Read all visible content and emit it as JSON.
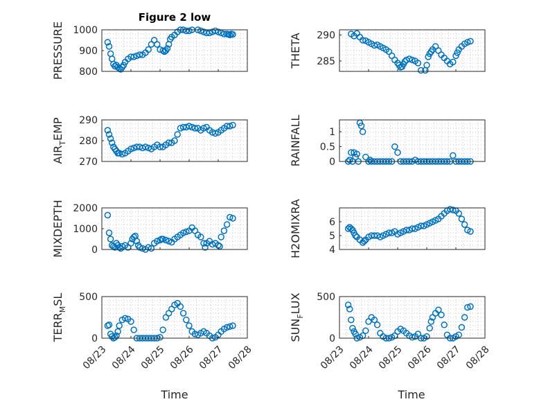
{
  "figure": {
    "title": "Figure 2 low",
    "color": "#0072bd",
    "grid": true,
    "marker": "circle-open",
    "x_tick_labels": [
      "08/23",
      "08/24",
      "08/25",
      "08/26",
      "08/27",
      "08/28"
    ],
    "x_axis_label": "Time"
  },
  "chart_data": [
    {
      "type": "scatter",
      "ylabel": "PRESSURE",
      "ylim": [
        800,
        1000
      ],
      "yticks": [
        800,
        900,
        1000
      ],
      "xlim": [
        0,
        5
      ],
      "x": [
        0.2,
        0.25,
        0.3,
        0.35,
        0.4,
        0.45,
        0.5,
        0.55,
        0.6,
        0.65,
        0.7,
        0.75,
        0.8,
        0.9,
        1.0,
        1.1,
        1.2,
        1.3,
        1.4,
        1.5,
        1.6,
        1.7,
        1.8,
        1.9,
        2.0,
        2.1,
        2.15,
        2.2,
        2.25,
        2.3,
        2.35,
        2.4,
        2.5,
        2.6,
        2.7,
        2.8,
        2.9,
        3.0,
        3.1,
        3.2,
        3.3,
        3.4,
        3.5,
        3.6,
        3.7,
        3.8,
        3.9,
        4.0,
        4.1,
        4.2,
        4.3,
        4.35,
        4.4,
        4.45,
        4.5
      ],
      "y": [
        940,
        920,
        885,
        860,
        835,
        825,
        830,
        820,
        815,
        810,
        820,
        830,
        845,
        860,
        870,
        870,
        875,
        880,
        880,
        890,
        905,
        930,
        950,
        930,
        905,
        900,
        895,
        900,
        910,
        930,
        955,
        965,
        975,
        990,
        1000,
        1000,
        995,
        995,
        1000,
        1005,
        1000,
        995,
        990,
        985,
        985,
        990,
        995,
        990,
        985,
        980,
        980,
        978,
        975,
        980,
        978
      ]
    },
    {
      "type": "scatter",
      "ylabel": "THETA",
      "ylim": [
        283,
        291
      ],
      "yticks": [
        285,
        290
      ],
      "xlim": [
        0,
        5
      ],
      "x": [
        0.4,
        0.5,
        0.6,
        0.7,
        0.8,
        0.9,
        1.0,
        1.1,
        1.2,
        1.3,
        1.4,
        1.5,
        1.6,
        1.7,
        1.8,
        1.9,
        2.0,
        2.05,
        2.1,
        2.15,
        2.2,
        2.25,
        2.3,
        2.4,
        2.5,
        2.6,
        2.7,
        2.8,
        2.9,
        2.95,
        3.0,
        3.05,
        3.1,
        3.15,
        3.2,
        3.3,
        3.4,
        3.5,
        3.6,
        3.7,
        3.8,
        3.9,
        4.0,
        4.05,
        4.1,
        4.2,
        4.3,
        4.4,
        4.5
      ],
      "y": [
        290.2,
        289.8,
        290.3,
        289.6,
        289.0,
        288.9,
        288.6,
        288.3,
        288.0,
        288.1,
        287.8,
        287.5,
        287.2,
        286.8,
        286.0,
        285.2,
        284.6,
        284.2,
        283.8,
        283.9,
        284.4,
        284.9,
        285.2,
        285.4,
        285.2,
        285.0,
        284.6,
        283.2,
        282.9,
        283.2,
        284.2,
        285.8,
        286.4,
        286.8,
        287.2,
        287.8,
        287.0,
        286.2,
        285.6,
        285.0,
        284.4,
        284.8,
        286.0,
        286.6,
        287.2,
        287.8,
        288.3,
        288.6,
        288.8
      ]
    },
    {
      "type": "scatter",
      "ylabel": "AIR_TEMP",
      "ylim": [
        270,
        290
      ],
      "yticks": [
        270,
        280,
        290
      ],
      "xlim": [
        0,
        5
      ],
      "x": [
        0.2,
        0.25,
        0.3,
        0.35,
        0.4,
        0.45,
        0.5,
        0.55,
        0.6,
        0.7,
        0.8,
        0.9,
        1.0,
        1.1,
        1.2,
        1.3,
        1.4,
        1.5,
        1.6,
        1.7,
        1.8,
        1.9,
        2.0,
        2.1,
        2.2,
        2.3,
        2.4,
        2.5,
        2.6,
        2.7,
        2.8,
        2.9,
        3.0,
        3.1,
        3.2,
        3.3,
        3.4,
        3.5,
        3.6,
        3.7,
        3.8,
        3.9,
        4.0,
        4.1,
        4.2,
        4.3,
        4.4,
        4.5
      ],
      "y": [
        285,
        283,
        281,
        279,
        277,
        276,
        275,
        274,
        274,
        273.5,
        274,
        275,
        276,
        276.5,
        277,
        277,
        276.5,
        277,
        276.5,
        276,
        277,
        278,
        277,
        277,
        278,
        279,
        279,
        280,
        283,
        286,
        286.5,
        286.5,
        287,
        286.5,
        286,
        286,
        285,
        286,
        286.5,
        285,
        284,
        283.5,
        284,
        285,
        286,
        287,
        287,
        287.5
      ]
    },
    {
      "type": "scatter",
      "ylabel": "RAINFALL",
      "ylim": [
        0,
        1.4
      ],
      "yticks": [
        0,
        0.5,
        1
      ],
      "xlim": [
        0,
        5
      ],
      "x": [
        0.3,
        0.35,
        0.4,
        0.45,
        0.5,
        0.55,
        0.6,
        0.65,
        0.7,
        0.75,
        0.8,
        0.9,
        1.0,
        1.05,
        1.1,
        1.2,
        1.3,
        1.4,
        1.5,
        1.6,
        1.7,
        1.8,
        1.9,
        2.0,
        2.1,
        2.2,
        2.3,
        2.4,
        2.5,
        2.6,
        2.7,
        2.8,
        2.9,
        3.0,
        3.1,
        3.2,
        3.3,
        3.4,
        3.5,
        3.6,
        3.7,
        3.8,
        3.9,
        4.0,
        4.1,
        4.2,
        4.3,
        4.4,
        4.5
      ],
      "y": [
        0,
        0.05,
        0.3,
        0,
        0.3,
        0.15,
        0.25,
        0,
        1.3,
        1.2,
        1.0,
        0.15,
        0,
        0.05,
        0,
        0,
        0,
        0,
        0,
        0,
        0,
        0,
        0.5,
        0.3,
        0,
        0,
        0,
        0,
        0,
        0.05,
        0,
        0,
        0,
        0,
        0,
        0,
        0,
        0,
        0,
        0,
        0,
        0,
        0.2,
        0,
        0,
        0,
        0,
        0,
        0
      ]
    },
    {
      "type": "scatter",
      "ylabel": "MIXDEPTH",
      "ylim": [
        0,
        2000
      ],
      "yticks": [
        0,
        1000,
        2000
      ],
      "xlim": [
        0,
        5
      ],
      "x": [
        0.2,
        0.25,
        0.3,
        0.35,
        0.4,
        0.45,
        0.5,
        0.55,
        0.6,
        0.65,
        0.7,
        0.8,
        0.9,
        1.0,
        1.05,
        1.1,
        1.15,
        1.2,
        1.25,
        1.3,
        1.4,
        1.5,
        1.6,
        1.7,
        1.8,
        1.9,
        2.0,
        2.05,
        2.1,
        2.2,
        2.3,
        2.4,
        2.5,
        2.6,
        2.7,
        2.8,
        2.9,
        3.0,
        3.1,
        3.2,
        3.3,
        3.4,
        3.5,
        3.55,
        3.6,
        3.7,
        3.8,
        3.9,
        4.0,
        4.05,
        4.1,
        4.2,
        4.3,
        4.4,
        4.5
      ],
      "y": [
        1650,
        800,
        500,
        200,
        150,
        100,
        300,
        200,
        100,
        50,
        150,
        200,
        100,
        300,
        500,
        600,
        650,
        400,
        200,
        100,
        50,
        0,
        100,
        50,
        300,
        400,
        450,
        500,
        500,
        450,
        400,
        350,
        500,
        600,
        700,
        800,
        850,
        900,
        1050,
        900,
        700,
        600,
        300,
        100,
        300,
        400,
        250,
        300,
        200,
        150,
        600,
        900,
        1200,
        1550,
        1500
      ]
    },
    {
      "type": "scatter",
      "ylabel": "H2OMIXRA",
      "ylim": [
        4,
        7
      ],
      "yticks": [
        4,
        5,
        6
      ],
      "xlim": [
        0,
        5
      ],
      "x": [
        0.3,
        0.35,
        0.4,
        0.45,
        0.5,
        0.55,
        0.6,
        0.7,
        0.8,
        0.85,
        0.9,
        1.0,
        1.1,
        1.2,
        1.3,
        1.4,
        1.5,
        1.6,
        1.7,
        1.8,
        1.9,
        2.0,
        2.1,
        2.2,
        2.3,
        2.4,
        2.5,
        2.6,
        2.7,
        2.8,
        2.9,
        3.0,
        3.1,
        3.2,
        3.3,
        3.4,
        3.5,
        3.6,
        3.7,
        3.8,
        3.9,
        4.0,
        4.1,
        4.2,
        4.3,
        4.4,
        4.5
      ],
      "y": [
        5.5,
        5.6,
        5.5,
        5.4,
        5.2,
        5.0,
        4.9,
        4.7,
        4.5,
        4.6,
        4.7,
        4.9,
        5.0,
        5.0,
        5.0,
        4.9,
        5.0,
        5.1,
        5.2,
        5.2,
        5.3,
        5.1,
        5.2,
        5.3,
        5.4,
        5.4,
        5.5,
        5.5,
        5.6,
        5.7,
        5.7,
        5.8,
        5.9,
        6.0,
        6.1,
        6.2,
        6.4,
        6.6,
        6.8,
        6.9,
        6.85,
        6.8,
        6.6,
        6.2,
        5.8,
        5.4,
        5.3
      ]
    },
    {
      "type": "scatter",
      "ylabel": "TERR_MSL",
      "ylim": [
        0,
        500
      ],
      "yticks": [
        0,
        500
      ],
      "xlim": [
        0,
        5
      ],
      "x": [
        0.2,
        0.25,
        0.3,
        0.35,
        0.4,
        0.45,
        0.5,
        0.55,
        0.6,
        0.7,
        0.8,
        0.9,
        1.0,
        1.1,
        1.2,
        1.3,
        1.4,
        1.5,
        1.6,
        1.7,
        1.8,
        1.9,
        2.0,
        2.1,
        2.2,
        2.3,
        2.4,
        2.5,
        2.6,
        2.7,
        2.8,
        2.9,
        3.0,
        3.1,
        3.2,
        3.3,
        3.4,
        3.5,
        3.6,
        3.7,
        3.8,
        3.9,
        4.0,
        4.1,
        4.2,
        4.3,
        4.4,
        4.5
      ],
      "y": [
        150,
        160,
        50,
        20,
        0,
        10,
        30,
        80,
        150,
        220,
        240,
        230,
        200,
        100,
        0,
        0,
        0,
        0,
        0,
        0,
        0,
        0,
        10,
        100,
        250,
        300,
        350,
        400,
        420,
        380,
        300,
        220,
        150,
        80,
        50,
        40,
        60,
        80,
        60,
        30,
        0,
        10,
        40,
        80,
        110,
        130,
        140,
        150
      ]
    },
    {
      "type": "scatter",
      "ylabel": "SUN_FLUX",
      "ylim": [
        0,
        500
      ],
      "yticks": [
        0,
        500
      ],
      "xlim": [
        0,
        5
      ],
      "x": [
        0.3,
        0.35,
        0.4,
        0.45,
        0.5,
        0.55,
        0.6,
        0.7,
        0.8,
        0.9,
        1.0,
        1.1,
        1.2,
        1.3,
        1.4,
        1.5,
        1.6,
        1.7,
        1.8,
        1.9,
        2.0,
        2.1,
        2.2,
        2.3,
        2.4,
        2.5,
        2.6,
        2.7,
        2.8,
        2.9,
        3.0,
        3.1,
        3.15,
        3.2,
        3.3,
        3.4,
        3.5,
        3.6,
        3.7,
        3.8,
        3.9,
        4.0,
        4.1,
        4.2,
        4.3,
        4.4,
        4.5
      ],
      "y": [
        400,
        350,
        220,
        120,
        80,
        50,
        0,
        10,
        30,
        90,
        200,
        250,
        220,
        160,
        60,
        20,
        0,
        0,
        10,
        30,
        80,
        110,
        90,
        60,
        30,
        10,
        20,
        50,
        0,
        0,
        20,
        120,
        200,
        250,
        300,
        340,
        280,
        160,
        40,
        0,
        0,
        20,
        40,
        130,
        250,
        370,
        380
      ]
    }
  ]
}
